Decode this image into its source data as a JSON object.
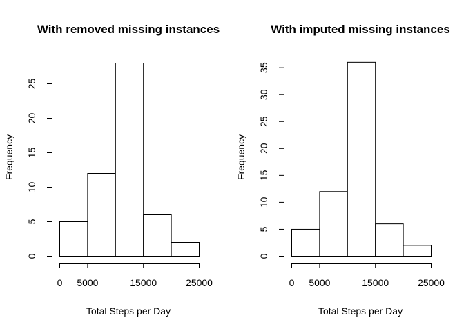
{
  "chart_data": [
    {
      "type": "bar",
      "title": "With removed missing instances",
      "xlabel": "Total Steps per Day",
      "ylabel": "Frequency",
      "bin_edges": [
        0,
        5000,
        10000,
        15000,
        20000,
        25000
      ],
      "values": [
        5,
        12,
        28,
        6,
        2
      ],
      "xticks": [
        0,
        5000,
        15000,
        25000
      ],
      "yticks": [
        0,
        5,
        10,
        15,
        20,
        25
      ],
      "ylim": [
        0,
        28
      ]
    },
    {
      "type": "bar",
      "title": "With imputed missing instances",
      "xlabel": "Total Steps per Day",
      "ylabel": "Frequency",
      "bin_edges": [
        0,
        5000,
        10000,
        15000,
        20000,
        25000
      ],
      "values": [
        5,
        12,
        36,
        6,
        2
      ],
      "xticks": [
        0,
        5000,
        15000,
        25000
      ],
      "yticks": [
        0,
        5,
        10,
        15,
        20,
        25,
        30,
        35
      ],
      "ylim": [
        0,
        36
      ]
    }
  ]
}
